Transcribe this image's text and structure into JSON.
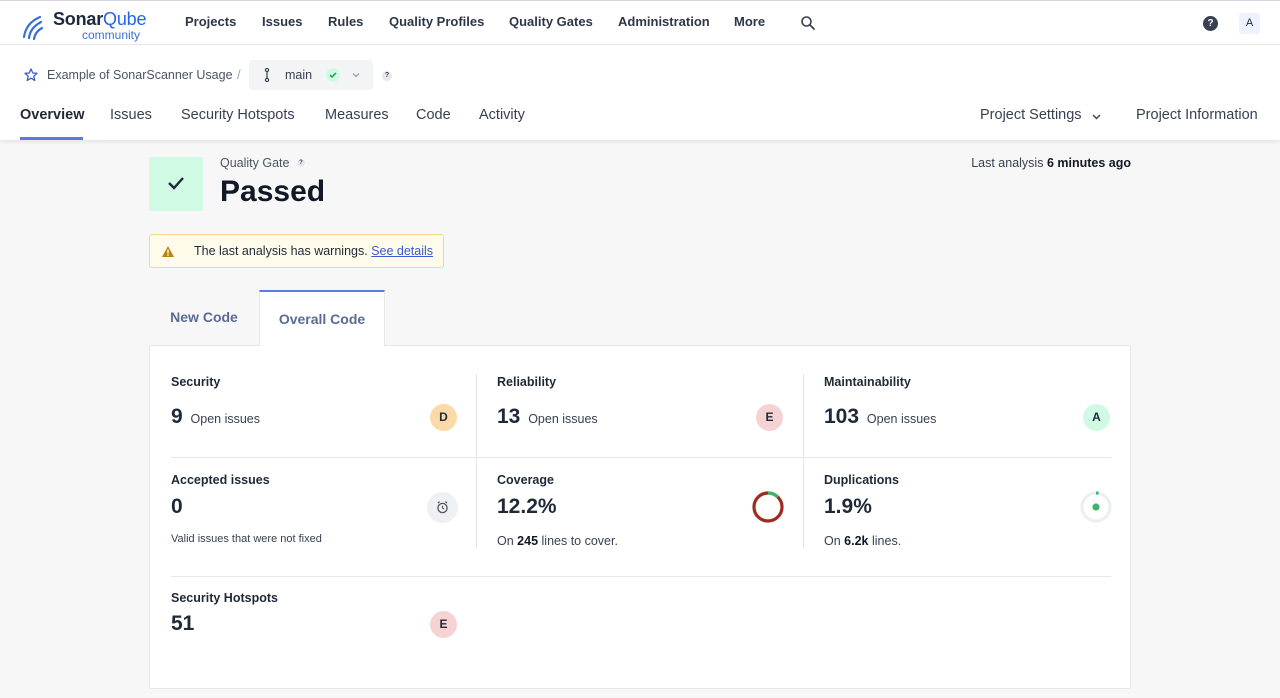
{
  "nav": {
    "logo_main": "Sonar",
    "logo_accent": "Qube",
    "logo_sub": "community",
    "items": [
      "Projects",
      "Issues",
      "Rules",
      "Quality Profiles",
      "Quality Gates",
      "Administration",
      "More"
    ],
    "help_label": "?",
    "avatar_initial": "A"
  },
  "project": {
    "name": "Example of SonarScanner Usage",
    "separator": "/",
    "branch": "main",
    "branch_help": "?",
    "tabs": [
      "Overview",
      "Issues",
      "Security Hotspots",
      "Measures",
      "Code",
      "Activity"
    ],
    "settings_label": "Project Settings",
    "info_label": "Project Information"
  },
  "quality_gate": {
    "label": "Quality Gate",
    "help": "?",
    "status": "Passed",
    "last_analysis_prefix": "Last analysis",
    "last_analysis_value": "6 minutes ago"
  },
  "warning": {
    "text": "The last analysis has warnings.",
    "link": "See details"
  },
  "code_tabs": {
    "new_code": "New Code",
    "overall_code": "Overall Code"
  },
  "measures": {
    "security": {
      "title": "Security",
      "value": "9",
      "unit": "Open issues",
      "rating": "D"
    },
    "reliability": {
      "title": "Reliability",
      "value": "13",
      "unit": "Open issues",
      "rating": "E"
    },
    "maintainability": {
      "title": "Maintainability",
      "value": "103",
      "unit": "Open issues",
      "rating": "A"
    },
    "accepted": {
      "title": "Accepted issues",
      "value": "0",
      "note": "Valid issues that were not fixed"
    },
    "coverage": {
      "title": "Coverage",
      "value": "12.2%",
      "note_prefix": "On",
      "note_value": "245",
      "note_suffix": "lines to cover.",
      "fraction": 0.122
    },
    "duplications": {
      "title": "Duplications",
      "value": "1.9%",
      "note_prefix": "On",
      "note_value": "6.2k",
      "note_suffix": "lines.",
      "fraction": 0.019
    },
    "hotspots": {
      "title": "Security Hotspots",
      "value": "51",
      "rating": "E"
    }
  },
  "colors": {
    "accent": "#5b7be0",
    "passed_bg": "#d1fae5",
    "coverage_ring": "#a02b22",
    "duplication_dot": "#3fb56b"
  }
}
